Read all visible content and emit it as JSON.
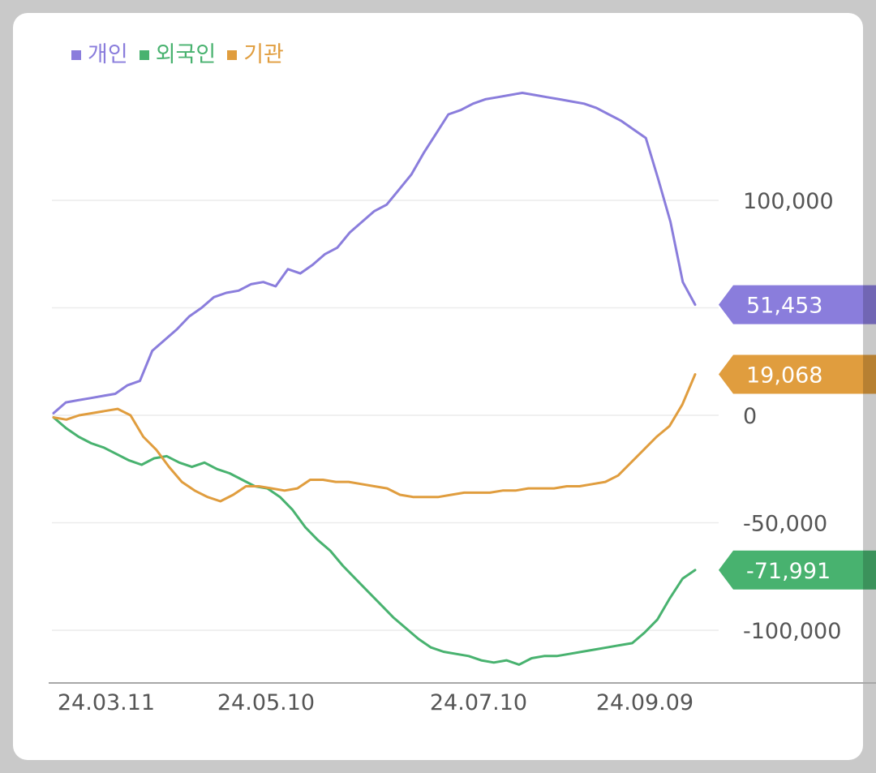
{
  "chart_data": {
    "type": "line",
    "title": "",
    "xlabel": "",
    "ylabel": "",
    "x_tick_labels": [
      "24.03.11",
      "24.05.10",
      "24.07.10",
      "24.09.09"
    ],
    "y_ticks": [
      {
        "value": 100000,
        "label": "100,000"
      },
      {
        "value": 0,
        "label": "0"
      },
      {
        "value": -50000,
        "label": "-50,000"
      },
      {
        "value": -100000,
        "label": "-100,000"
      }
    ],
    "ylim": [
      -118000,
      148000
    ],
    "grid": true,
    "legend_position": "top-left",
    "series": [
      {
        "name": "개인",
        "color": "#8a7ddc",
        "last_value_label": "51,453",
        "last_value": 51453,
        "values": [
          1000,
          6000,
          7000,
          8000,
          9000,
          10000,
          14000,
          16000,
          30000,
          35000,
          40000,
          46000,
          50000,
          55000,
          57000,
          58000,
          61000,
          62000,
          60000,
          68000,
          66000,
          70000,
          75000,
          78000,
          85000,
          90000,
          95000,
          98000,
          105000,
          112000,
          122000,
          131000,
          140000,
          142000,
          145000,
          147000,
          148000,
          149000,
          150000,
          149000,
          148000,
          147000,
          146000,
          145000,
          143000,
          140000,
          137000,
          133000,
          129000,
          110000,
          90000,
          62000,
          51453
        ]
      },
      {
        "name": "외국인",
        "color": "#48b26f",
        "last_value_label": "-71,991",
        "last_value": -71991,
        "values": [
          -1000,
          -6000,
          -10000,
          -13000,
          -15000,
          -18000,
          -21000,
          -23000,
          -20000,
          -19000,
          -22000,
          -24000,
          -22000,
          -25000,
          -27000,
          -30000,
          -33000,
          -34000,
          -38000,
          -44000,
          -52000,
          -58000,
          -63000,
          -70000,
          -76000,
          -82000,
          -88000,
          -94000,
          -99000,
          -104000,
          -108000,
          -110000,
          -111000,
          -112000,
          -114000,
          -115000,
          -114000,
          -116000,
          -113000,
          -112000,
          -112000,
          -111000,
          -110000,
          -109000,
          -108000,
          -107000,
          -106000,
          -101000,
          -95000,
          -85000,
          -76000,
          -71991
        ]
      },
      {
        "name": "기관",
        "color": "#e09d3e",
        "last_value_label": "19,068",
        "last_value": 19068,
        "values": [
          -1000,
          -2000,
          0,
          1000,
          2000,
          3000,
          0,
          -10000,
          -16000,
          -24000,
          -31000,
          -35000,
          -38000,
          -40000,
          -37000,
          -33000,
          -33000,
          -34000,
          -35000,
          -34000,
          -30000,
          -30000,
          -31000,
          -31000,
          -32000,
          -33000,
          -34000,
          -37000,
          -38000,
          -38000,
          -38000,
          -37000,
          -36000,
          -36000,
          -36000,
          -35000,
          -35000,
          -34000,
          -34000,
          -34000,
          -33000,
          -33000,
          -32000,
          -31000,
          -28000,
          -22000,
          -16000,
          -10000,
          -5000,
          5000,
          19068
        ]
      }
    ]
  }
}
